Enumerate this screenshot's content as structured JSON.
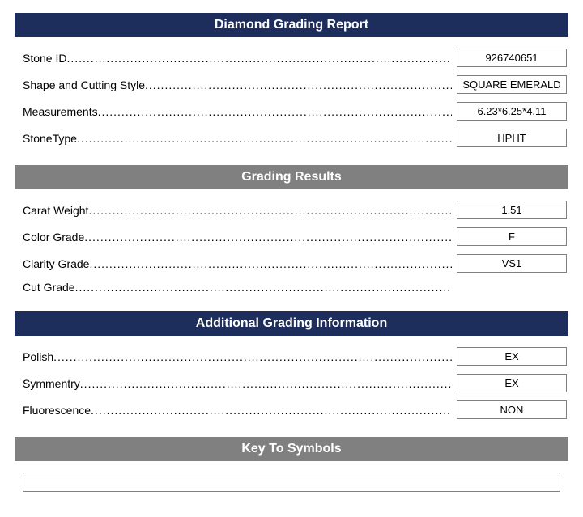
{
  "colors": {
    "header_navy": "#1d2e5c",
    "header_gray": "#808080",
    "border_gray": "#808080",
    "background": "#ffffff",
    "text": "#000000",
    "header_text": "#ffffff"
  },
  "sections": {
    "report": {
      "title": "Diamond Grading Report",
      "rows": {
        "stone_id": {
          "label": "Stone ID",
          "value": "926740651"
        },
        "shape": {
          "label": "Shape and Cutting Style",
          "value": "SQUARE EMERALD"
        },
        "measurements": {
          "label": "Measurements",
          "value": "6.23*6.25*4.11"
        },
        "stone_type": {
          "label": "StoneType",
          "value": "HPHT"
        }
      }
    },
    "grading": {
      "title": "Grading Results",
      "rows": {
        "carat": {
          "label": "Carat Weight",
          "value": "1.51"
        },
        "color": {
          "label": "Color Grade",
          "value": "F"
        },
        "clarity": {
          "label": "Clarity Grade",
          "value": "VS1"
        },
        "cut": {
          "label": "Cut Grade",
          "value": ""
        }
      }
    },
    "additional": {
      "title": "Additional Grading Information",
      "rows": {
        "polish": {
          "label": "Polish",
          "value": "EX"
        },
        "symmetry": {
          "label": "Symmentry",
          "value": "EX"
        },
        "fluorescence": {
          "label": "Fluorescence",
          "value": "NON"
        }
      }
    },
    "symbols": {
      "title": "Key To Symbols"
    }
  }
}
